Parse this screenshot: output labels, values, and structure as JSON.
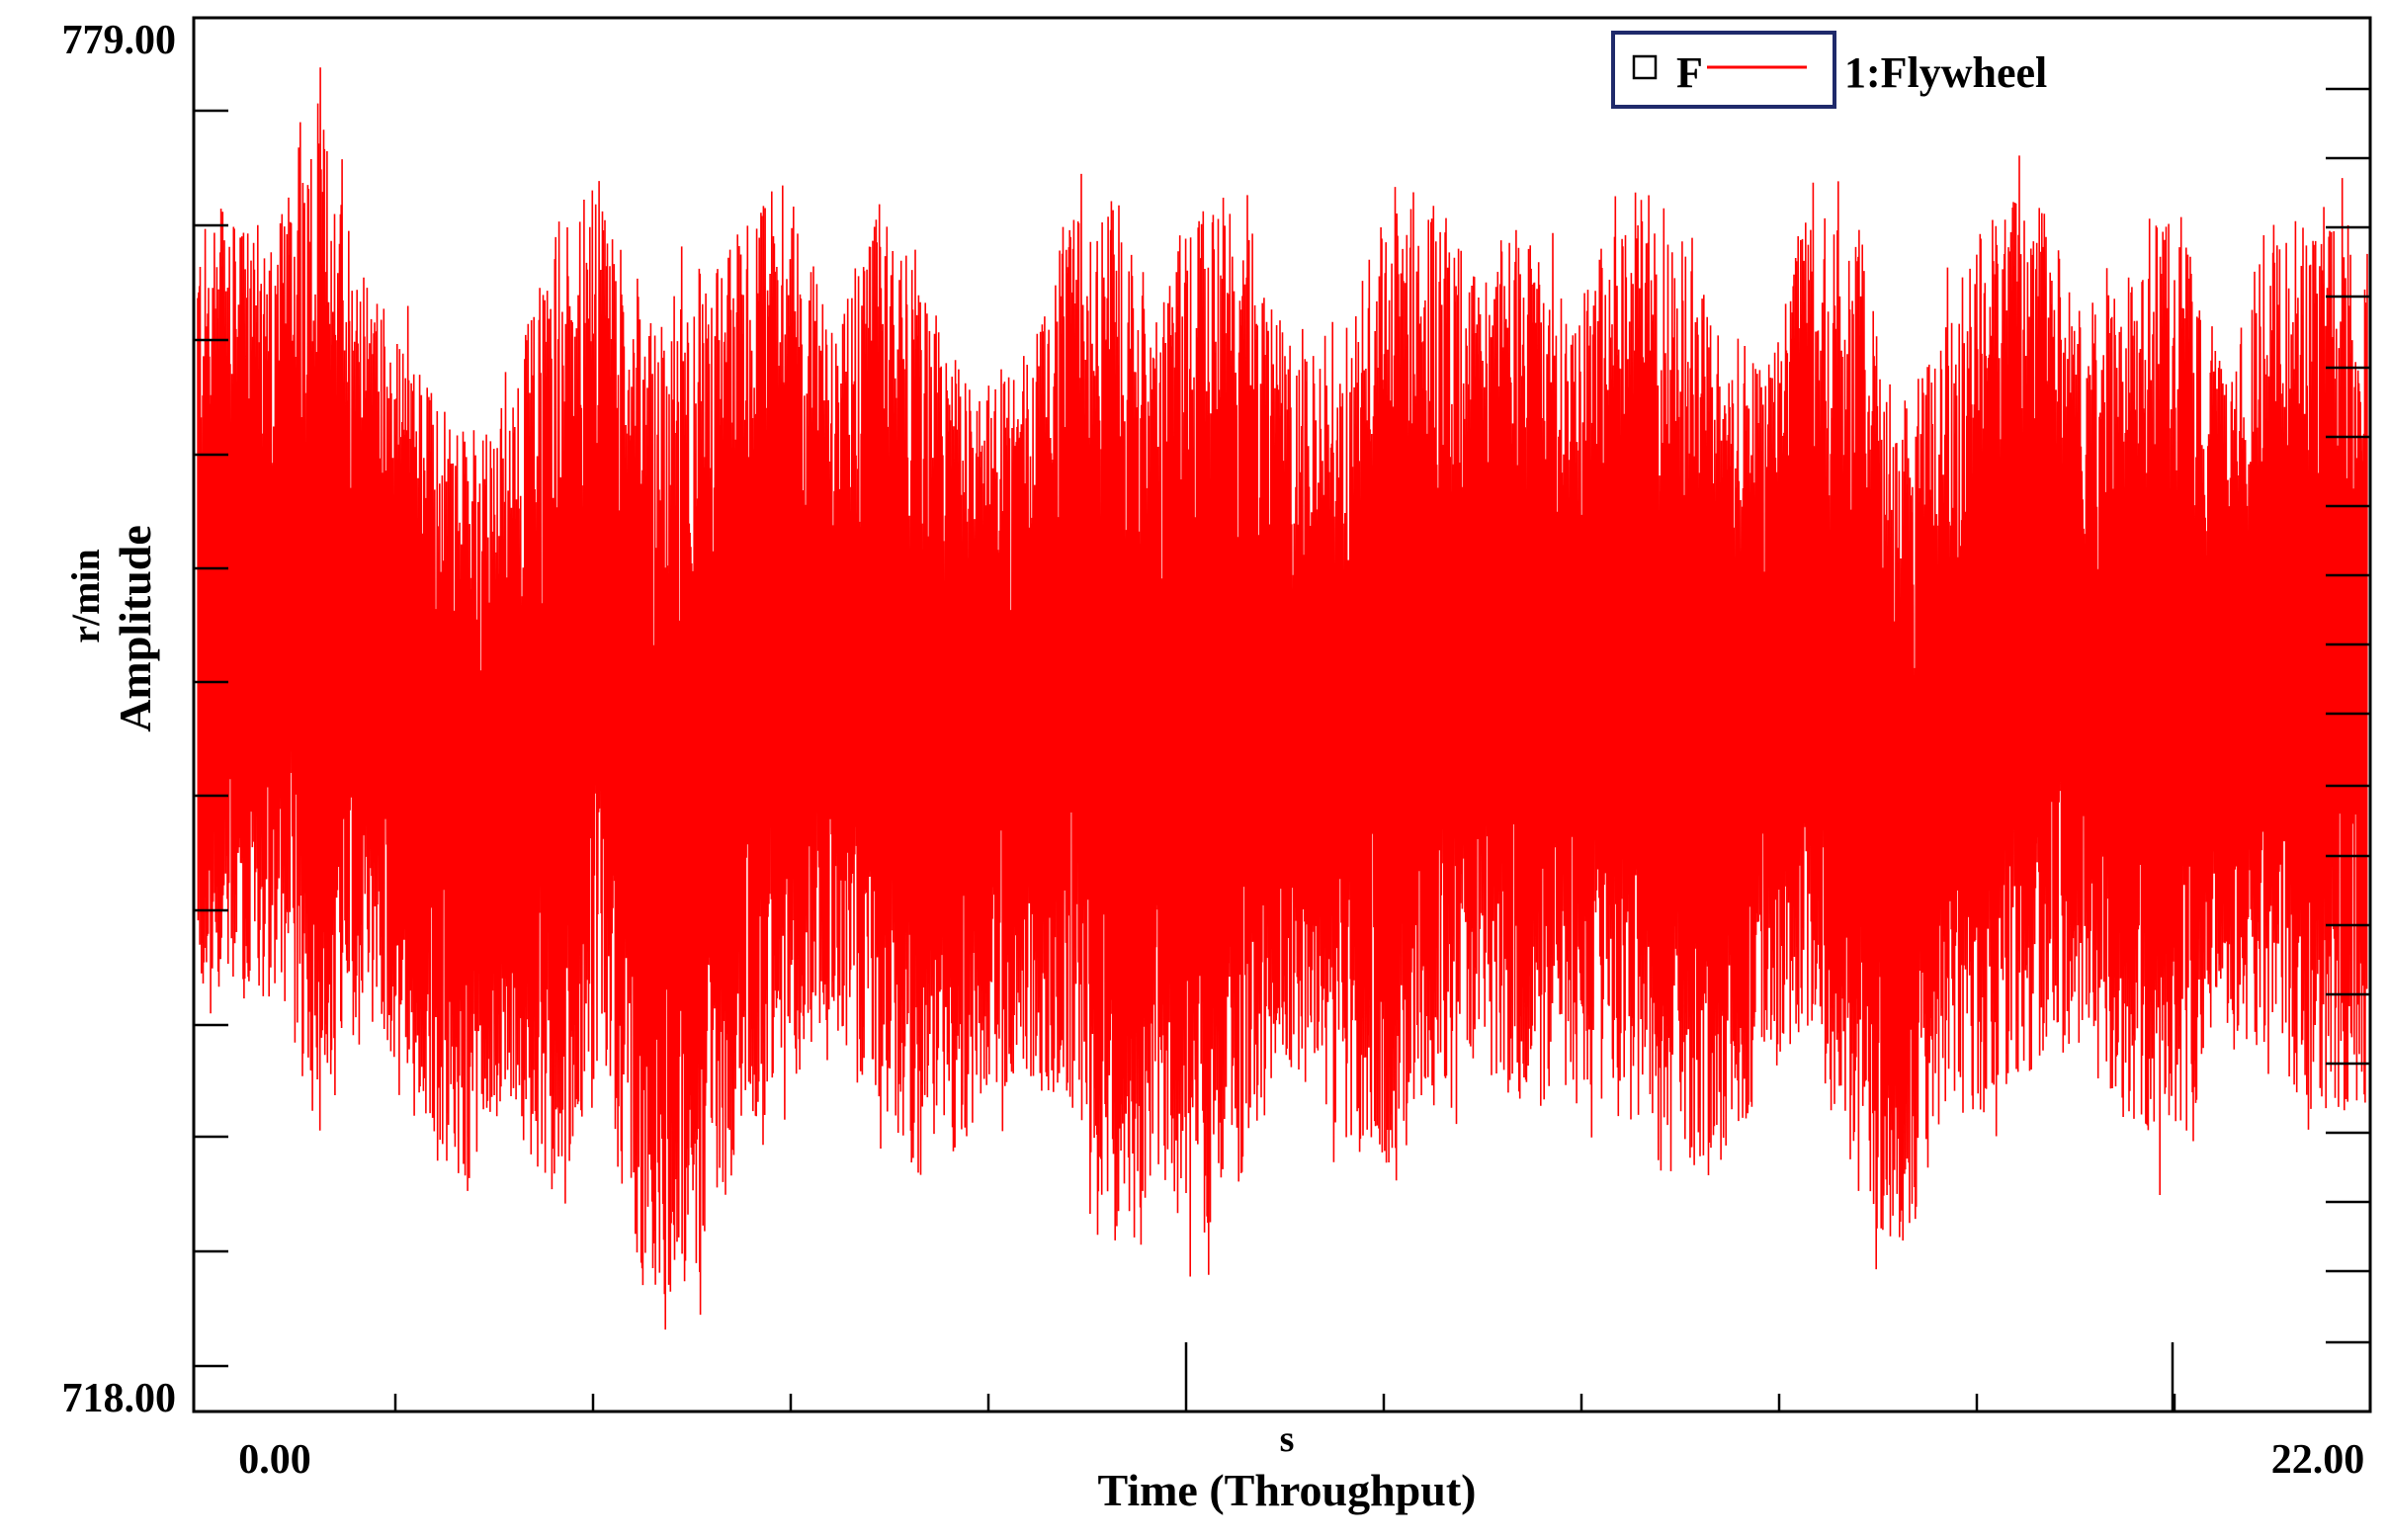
{
  "chart_data": {
    "type": "line",
    "title": "",
    "xlabel": "Time (Throughput)",
    "xunit": "s",
    "ylabel": "Amplitude",
    "yunit": "r/min",
    "xlim": [
      0.0,
      22.0
    ],
    "ylim": [
      718.0,
      779.0
    ],
    "x_tick_labels": [
      "0.00",
      "22.00"
    ],
    "y_tick_labels": [
      "779.00",
      "718.00"
    ],
    "legend": {
      "placement": "top-right",
      "prefix": "F",
      "entries": [
        "1:Flywheel"
      ]
    },
    "series": [
      {
        "name": "1:Flywheel",
        "color": "#ff0000",
        "description_points": {
          "x": [
            0.0,
            0.5,
            1.0,
            1.5,
            2.0,
            2.5,
            3.0,
            3.5,
            4.0,
            4.5,
            5.0,
            5.5,
            6.0,
            6.5,
            7.0,
            7.5,
            8.0,
            8.5,
            9.0,
            9.5,
            10.0,
            10.5,
            11.0,
            11.5,
            12.0,
            12.5,
            13.0,
            13.5,
            14.0,
            14.5,
            15.0,
            15.5,
            16.0,
            16.5,
            17.0,
            17.5,
            18.0,
            18.5,
            19.0,
            19.5,
            20.0,
            20.5,
            21.0,
            21.5,
            22.0
          ],
          "upper_envelope": [
            770,
            775,
            768,
            764,
            761,
            762,
            770,
            772,
            766,
            768,
            770,
            772,
            766,
            771,
            767,
            763,
            764,
            770,
            772,
            767,
            771,
            770,
            764,
            765,
            772,
            771,
            768,
            771,
            766,
            772,
            771,
            766,
            764,
            771,
            771,
            762,
            766,
            771,
            771,
            766,
            768,
            772,
            763,
            771,
            770
          ],
          "lower_envelope": [
            736,
            730,
            735,
            732,
            727,
            731,
            727,
            732,
            723,
            723,
            729,
            732,
            735,
            731,
            728,
            730,
            733,
            731,
            725,
            728,
            725,
            729,
            733,
            730,
            728,
            732,
            733,
            731,
            732,
            731,
            728,
            728,
            732,
            735,
            727,
            725,
            731,
            731,
            733,
            734,
            730,
            729,
            734,
            733,
            731
          ]
        }
      }
    ],
    "grid": false
  }
}
